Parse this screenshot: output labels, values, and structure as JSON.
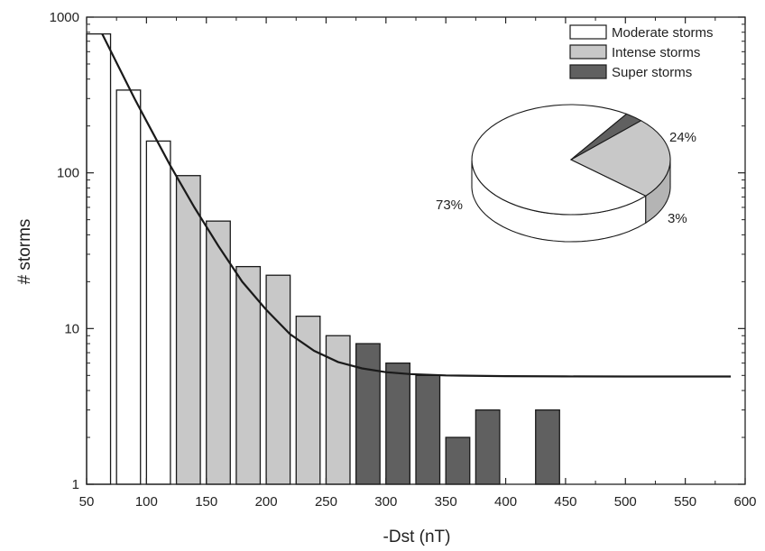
{
  "chart_data": {
    "type": "bar",
    "xlabel": "-Dst (nT)",
    "ylabel": "# storms",
    "xlim": [
      50,
      600
    ],
    "ylim": [
      1,
      1000
    ],
    "yscale": "log",
    "x_ticks": [
      50,
      100,
      150,
      200,
      250,
      300,
      350,
      400,
      450,
      500,
      550,
      600
    ],
    "y_ticks": [
      1,
      10,
      100,
      1000
    ],
    "bin_width": 20,
    "series": [
      {
        "name": "Moderate storms",
        "color": "#ffffff",
        "bins": [
          {
            "x_start": 50,
            "value": 780
          },
          {
            "x_start": 75,
            "value": 340
          },
          {
            "x_start": 100,
            "value": 160
          }
        ]
      },
      {
        "name": "Intense storms",
        "color": "#c8c8c8",
        "bins": [
          {
            "x_start": 125,
            "value": 96
          },
          {
            "x_start": 150,
            "value": 49
          },
          {
            "x_start": 175,
            "value": 25
          },
          {
            "x_start": 200,
            "value": 22
          },
          {
            "x_start": 225,
            "value": 12
          },
          {
            "x_start": 250,
            "value": 9
          }
        ]
      },
      {
        "name": "Super storms",
        "color": "#606060",
        "bins": [
          {
            "x_start": 275,
            "value": 8
          },
          {
            "x_start": 300,
            "value": 6
          },
          {
            "x_start": 325,
            "value": 5
          },
          {
            "x_start": 350,
            "value": 2
          },
          {
            "x_start": 375,
            "value": 3
          },
          {
            "x_start": 425,
            "value": 3
          }
        ]
      }
    ],
    "fit_curve": {
      "x": [
        63,
        75,
        90,
        100,
        120,
        140,
        160,
        180,
        200,
        220,
        240,
        260,
        280,
        300,
        320,
        350,
        400,
        450,
        500,
        550,
        588
      ],
      "y": [
        780,
        510,
        300,
        215,
        111,
        60,
        34,
        20,
        13.2,
        9.2,
        7.2,
        6.1,
        5.55,
        5.25,
        5.1,
        5.0,
        4.95,
        4.93,
        4.92,
        4.92,
        4.92
      ]
    },
    "legend": {
      "placement": "top-right",
      "entries": [
        {
          "label": "Moderate storms",
          "color": "#ffffff"
        },
        {
          "label": "Intense storms",
          "color": "#c8c8c8"
        },
        {
          "label": "Super storms",
          "color": "#606060"
        }
      ]
    },
    "inset_pie": {
      "type": "pie",
      "slices": [
        {
          "name": "Moderate storms",
          "value": 73,
          "label": "73%",
          "color": "#ffffff"
        },
        {
          "name": "Intense storms",
          "value": 24,
          "label": "24%",
          "color": "#c8c8c8"
        },
        {
          "name": "Super storms",
          "value": 3,
          "label": "3%",
          "color": "#606060"
        }
      ]
    }
  }
}
